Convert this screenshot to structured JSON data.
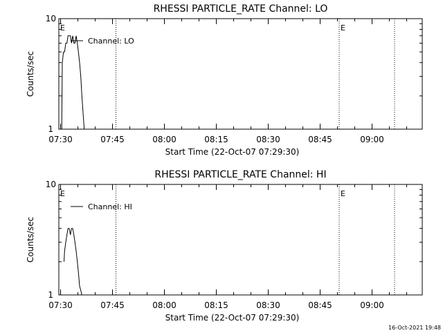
{
  "footer": {
    "timestamp": "16-Oct-2021 19:48"
  },
  "chart_data": [
    {
      "type": "line",
      "title": "RHESSI PARTICLE_RATE Channel: LO",
      "xlabel": "Start Time (22-Oct-07 07:29:30)",
      "ylabel": "Counts/sec",
      "yscale": "log",
      "ylim": [
        1,
        10
      ],
      "xlim_minutes_after_0730": [
        -0.5,
        104.5
      ],
      "x_tick_labels": [
        "07:30",
        "07:45",
        "08:00",
        "08:15",
        "08:30",
        "08:45",
        "09:00"
      ],
      "y_tick_labels": [
        "1",
        "10"
      ],
      "legend": {
        "entries": [
          "Channel: LO"
        ],
        "placement": "top-left"
      },
      "grid": false,
      "event_markers": [
        {
          "time": "07:29:30",
          "label": "E"
        },
        {
          "time": "07:46:00",
          "label": ""
        },
        {
          "time": "08:50:30",
          "label": "E"
        },
        {
          "time": "09:06:30",
          "label": ""
        }
      ],
      "series": [
        {
          "name": "Channel: LO",
          "x": [
            "07:30:20",
            "07:30:30",
            "07:30:50",
            "07:31:10",
            "07:31:30",
            "07:31:50",
            "07:32:10",
            "07:32:30",
            "07:32:50",
            "07:33:10",
            "07:33:30",
            "07:33:50",
            "07:34:10",
            "07:34:30",
            "07:34:50",
            "07:35:10",
            "07:35:30",
            "07:35:50",
            "07:36:10",
            "07:36:30",
            "07:36:50"
          ],
          "values": [
            1,
            4,
            5,
            5,
            6,
            6,
            7,
            7,
            7,
            6,
            7,
            6,
            6,
            7,
            6,
            5,
            4,
            3,
            2,
            1.4,
            1
          ]
        }
      ]
    },
    {
      "type": "line",
      "title": "RHESSI PARTICLE_RATE Channel: HI",
      "xlabel": "Start Time (22-Oct-07 07:29:30)",
      "ylabel": "Counts/sec",
      "yscale": "log",
      "ylim": [
        1,
        10
      ],
      "xlim_minutes_after_0730": [
        -0.5,
        104.5
      ],
      "x_tick_labels": [
        "07:30",
        "07:45",
        "08:00",
        "08:15",
        "08:30",
        "08:45",
        "09:00"
      ],
      "y_tick_labels": [
        "1",
        "10"
      ],
      "legend": {
        "entries": [
          "Channel: HI"
        ],
        "placement": "top-left"
      },
      "grid": false,
      "event_markers": [
        {
          "time": "07:29:30",
          "label": "E"
        },
        {
          "time": "07:46:00",
          "label": ""
        },
        {
          "time": "08:50:30",
          "label": "E"
        },
        {
          "time": "09:06:30",
          "label": ""
        }
      ],
      "series": [
        {
          "name": "Channel: HI",
          "x": [
            "07:31:00",
            "07:31:10",
            "07:31:30",
            "07:31:50",
            "07:32:10",
            "07:32:30",
            "07:32:50",
            "07:33:10",
            "07:33:30",
            "07:33:50",
            "07:34:10",
            "07:34:30",
            "07:34:50",
            "07:35:10",
            "07:35:30",
            "07:35:50",
            "07:36:10",
            "07:36:30"
          ],
          "values": [
            2,
            2.5,
            3,
            3.5,
            4,
            4,
            3.5,
            4,
            4,
            3.5,
            3,
            2.5,
            2,
            1.6,
            1.2,
            1.1,
            1,
            1
          ]
        }
      ]
    }
  ]
}
